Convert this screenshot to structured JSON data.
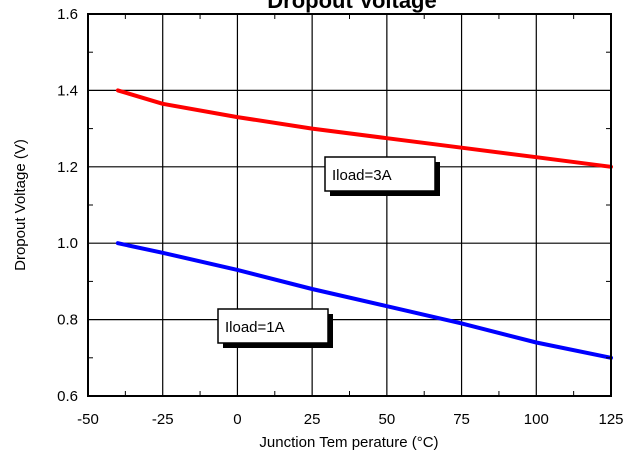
{
  "chart_data": {
    "type": "line",
    "title": "Dropout Voltage",
    "xlabel": "Junction Tem perature (°C)",
    "ylabel": "Dropout Voltage (V)",
    "xlim": [
      -50,
      125
    ],
    "ylim": [
      0.6,
      1.6
    ],
    "x_ticks": [
      "-50",
      "-25",
      "0",
      "25",
      "50",
      "75",
      "100",
      "125"
    ],
    "y_ticks": [
      "0.6",
      "0.8",
      "1.0",
      "1.2",
      "1.4",
      "1.6"
    ],
    "grid": true,
    "series": [
      {
        "name": "Iload=3A",
        "color": "#ff0000",
        "x": [
          -40,
          -25,
          0,
          25,
          50,
          75,
          100,
          125
        ],
        "y": [
          1.4,
          1.365,
          1.33,
          1.3,
          1.275,
          1.25,
          1.225,
          1.2
        ]
      },
      {
        "name": "Iload=1A",
        "color": "#0000ff",
        "x": [
          -40,
          -25,
          0,
          25,
          50,
          75,
          100,
          125
        ],
        "y": [
          1.0,
          0.975,
          0.93,
          0.88,
          0.835,
          0.79,
          0.74,
          0.7
        ]
      }
    ],
    "annotations": [
      {
        "text": "Iload=3A",
        "series": 0
      },
      {
        "text": "Iload=1A",
        "series": 1
      }
    ]
  }
}
